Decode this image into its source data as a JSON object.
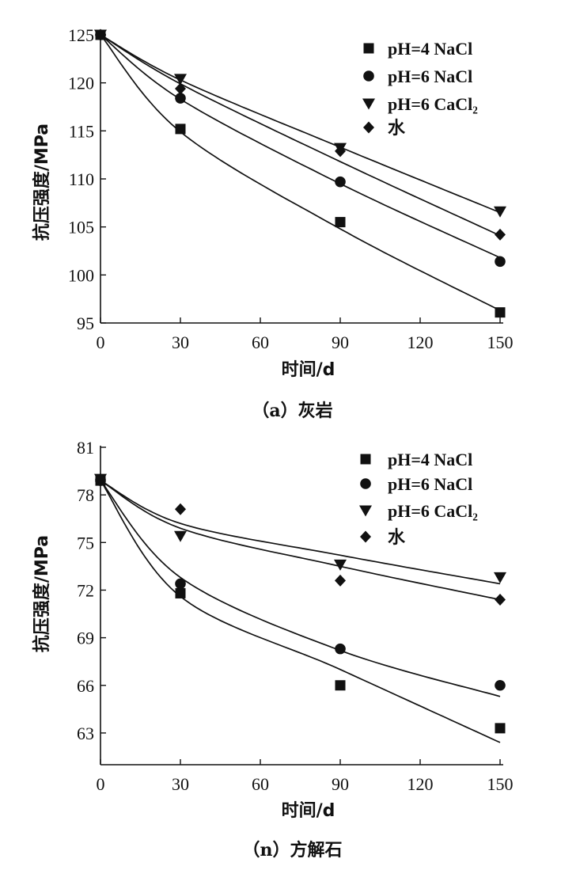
{
  "chart_data": [
    {
      "type": "scatter",
      "caption": "（a）灰岩",
      "xlabel": "时间/d",
      "ylabel": "抗压强度/MPa",
      "xlim": [
        0,
        150
      ],
      "ylim": [
        95,
        125
      ],
      "xticks": [
        0,
        30,
        60,
        90,
        120,
        150
      ],
      "yticks": [
        95,
        100,
        105,
        110,
        115,
        120,
        125
      ],
      "series": [
        {
          "name": "pH=4 NaCl",
          "marker": "square",
          "x": [
            0,
            30,
            90,
            150
          ],
          "values": [
            125.0,
            115.2,
            105.5,
            96.1
          ],
          "fit": [
            125.0,
            114.9,
            104.8,
            96.3
          ]
        },
        {
          "name": "pH=6 NaCl",
          "marker": "circle",
          "x": [
            0,
            30,
            90,
            150
          ],
          "values": [
            125.0,
            118.4,
            109.7,
            101.4
          ],
          "fit": [
            125.0,
            118.3,
            109.5,
            101.8
          ]
        },
        {
          "name": "pH=6 CaCl₂",
          "marker": "triangle",
          "x": [
            0,
            30,
            90,
            150
          ],
          "values": [
            125.0,
            120.4,
            113.2,
            106.6
          ],
          "fit": [
            125.0,
            120.3,
            113.3,
            106.5
          ]
        },
        {
          "name": "水",
          "marker": "diamond",
          "x": [
            0,
            30,
            90,
            150
          ],
          "values": [
            125.0,
            119.4,
            112.9,
            104.2
          ],
          "fit": [
            125.0,
            119.9,
            111.8,
            104.1
          ]
        }
      ]
    },
    {
      "type": "scatter",
      "caption": "（n）方解石",
      "xlabel": "时间/d",
      "ylabel": "抗压强度/MPa",
      "xlim": [
        0,
        150
      ],
      "ylim": [
        61,
        81
      ],
      "xticks": [
        0,
        30,
        60,
        90,
        120,
        150
      ],
      "yticks": [
        63,
        66,
        69,
        72,
        75,
        78,
        81
      ],
      "series": [
        {
          "name": "pH=4 NaCl",
          "marker": "square",
          "x": [
            0,
            30,
            90,
            150
          ],
          "values": [
            78.9,
            71.8,
            66.0,
            63.3
          ],
          "fit": [
            78.9,
            71.6,
            67.0,
            62.4
          ]
        },
        {
          "name": "pH=6 NaCl",
          "marker": "circle",
          "x": [
            0,
            30,
            90,
            150
          ],
          "values": [
            78.9,
            72.4,
            68.3,
            66.0
          ],
          "fit": [
            78.9,
            72.8,
            68.2,
            65.3
          ]
        },
        {
          "name": "pH=6 CaCl₂",
          "marker": "triangle",
          "x": [
            0,
            30,
            90,
            150
          ],
          "values": [
            79.0,
            75.4,
            73.6,
            72.8
          ],
          "fit": [
            78.9,
            76.2,
            74.2,
            72.4
          ]
        },
        {
          "name": "水",
          "marker": "diamond",
          "x": [
            0,
            30,
            90,
            150
          ],
          "values": [
            79.0,
            77.1,
            72.6,
            71.4
          ],
          "fit": [
            78.9,
            75.9,
            73.5,
            71.4
          ]
        }
      ]
    }
  ]
}
